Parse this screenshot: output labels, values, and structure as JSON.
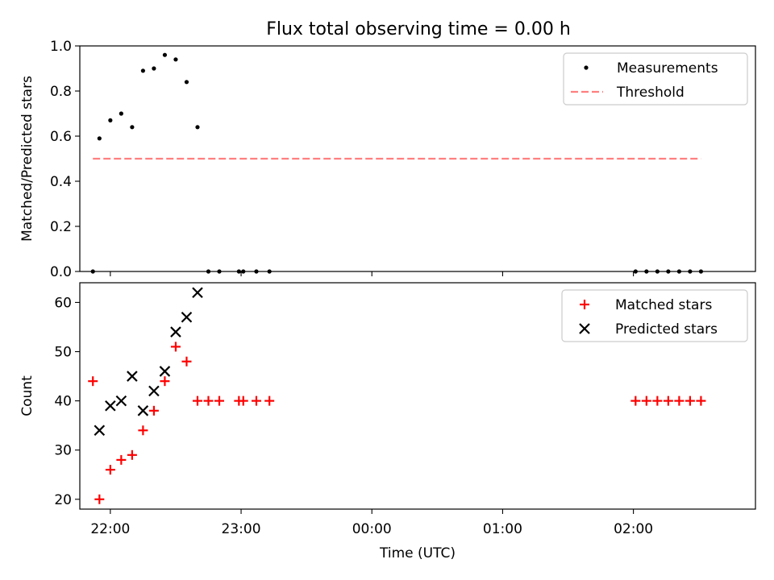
{
  "figure": {
    "title": "Flux total observing time = 0.00 h"
  },
  "chart_data": [
    {
      "type": "scatter",
      "ylabel": "Matched/Predicted stars",
      "xlabel": "",
      "xlim": [
        "21:46",
        "02:56"
      ],
      "ylim": [
        0,
        1.0
      ],
      "y_ticks": [
        0.0,
        0.2,
        0.4,
        0.6,
        0.8,
        1.0
      ],
      "y_tick_labels": [
        "0.0",
        "0.2",
        "0.4",
        "0.6",
        "0.8",
        "1.0"
      ],
      "x_ticks": [
        "22:00",
        "23:00",
        "00:00",
        "01:00",
        "02:00"
      ],
      "x_tick_labels": [
        "",
        "",
        "",
        "",
        ""
      ],
      "legend_position": "top-right",
      "series": [
        {
          "name": "Measurements",
          "kind": "scatter",
          "marker": "dot",
          "color": "#000000",
          "points": [
            [
              "21:52",
              0.0
            ],
            [
              "21:55",
              0.59
            ],
            [
              "22:00",
              0.67
            ],
            [
              "22:05",
              0.7
            ],
            [
              "22:10",
              0.64
            ],
            [
              "22:15",
              0.89
            ],
            [
              "22:20",
              0.9
            ],
            [
              "22:25",
              0.96
            ],
            [
              "22:30",
              0.94
            ],
            [
              "22:35",
              0.84
            ],
            [
              "22:40",
              0.64
            ],
            [
              "22:45",
              0.0
            ],
            [
              "22:50",
              0.0
            ],
            [
              "22:59",
              0.0
            ],
            [
              "23:01",
              0.0
            ],
            [
              "23:07",
              0.0
            ],
            [
              "23:13",
              0.0
            ],
            [
              "02:01",
              0.0
            ],
            [
              "02:06",
              0.0
            ],
            [
              "02:11",
              0.0
            ],
            [
              "02:16",
              0.0
            ],
            [
              "02:21",
              0.0
            ],
            [
              "02:26",
              0.0
            ],
            [
              "02:31",
              0.0
            ]
          ]
        },
        {
          "name": "Threshold",
          "kind": "line",
          "style": "dashed",
          "color": "#ff7f7f",
          "points": [
            [
              "21:52",
              0.5
            ],
            [
              "02:31",
              0.5
            ]
          ]
        }
      ]
    },
    {
      "type": "scatter",
      "ylabel": "Count",
      "xlabel": "Time (UTC)",
      "xlim": [
        "21:46",
        "02:56"
      ],
      "ylim": [
        18,
        64
      ],
      "y_ticks": [
        20,
        30,
        40,
        50,
        60
      ],
      "y_tick_labels": [
        "20",
        "30",
        "40",
        "50",
        "60"
      ],
      "x_ticks": [
        "22:00",
        "23:00",
        "00:00",
        "01:00",
        "02:00"
      ],
      "x_tick_labels": [
        "22:00",
        "23:00",
        "00:00",
        "01:00",
        "02:00"
      ],
      "legend_position": "top-right",
      "series": [
        {
          "name": "Matched stars",
          "kind": "scatter",
          "marker": "plus",
          "color": "#ff0000",
          "points": [
            [
              "21:52",
              44
            ],
            [
              "21:55",
              20
            ],
            [
              "22:00",
              26
            ],
            [
              "22:05",
              28
            ],
            [
              "22:10",
              29
            ],
            [
              "22:15",
              34
            ],
            [
              "22:20",
              38
            ],
            [
              "22:25",
              44
            ],
            [
              "22:30",
              51
            ],
            [
              "22:35",
              48
            ],
            [
              "22:40",
              40
            ],
            [
              "22:45",
              40
            ],
            [
              "22:50",
              40
            ],
            [
              "22:59",
              40
            ],
            [
              "23:01",
              40
            ],
            [
              "23:07",
              40
            ],
            [
              "23:13",
              40
            ],
            [
              "02:01",
              40
            ],
            [
              "02:06",
              40
            ],
            [
              "02:11",
              40
            ],
            [
              "02:16",
              40
            ],
            [
              "02:21",
              40
            ],
            [
              "02:26",
              40
            ],
            [
              "02:31",
              40
            ]
          ]
        },
        {
          "name": "Predicted stars",
          "kind": "scatter",
          "marker": "x",
          "color": "#000000",
          "points": [
            [
              "21:55",
              34
            ],
            [
              "22:00",
              39
            ],
            [
              "22:05",
              40
            ],
            [
              "22:10",
              45
            ],
            [
              "22:15",
              38
            ],
            [
              "22:20",
              42
            ],
            [
              "22:25",
              46
            ],
            [
              "22:30",
              54
            ],
            [
              "22:35",
              57
            ],
            [
              "22:40",
              62
            ]
          ]
        }
      ]
    }
  ]
}
